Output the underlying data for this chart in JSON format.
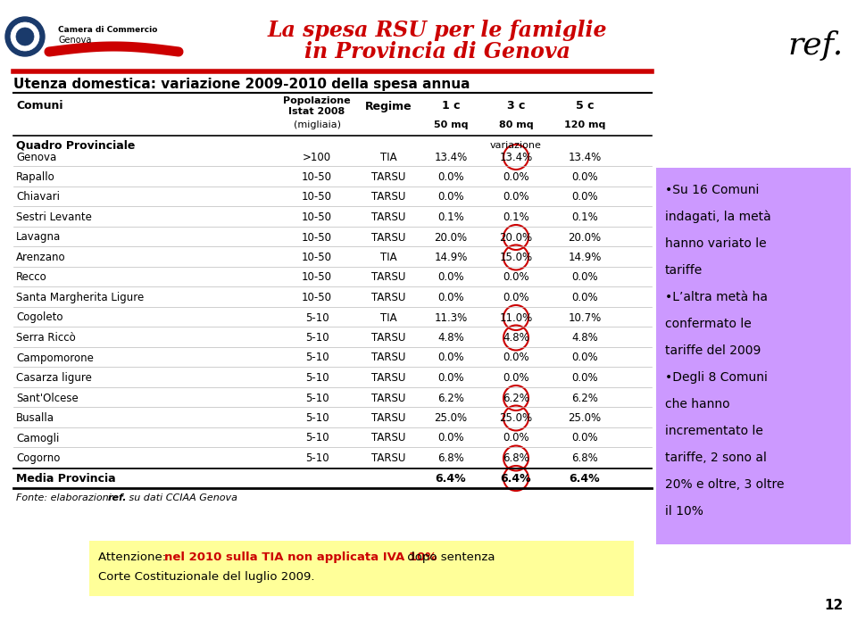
{
  "title_line1": "La spesa RSU per le famiglie",
  "title_line2": "in Provincia di Genova",
  "subtitle": "Utenza domestica: variazione 2009-2010 della spesa annua",
  "rows": [
    [
      "Genova",
      ">100",
      "TIA",
      "13.4%",
      "13.4%",
      "13.4%",
      true
    ],
    [
      "Rapallo",
      "10-50",
      "TARSU",
      "0.0%",
      "0.0%",
      "0.0%",
      false
    ],
    [
      "Chiavari",
      "10-50",
      "TARSU",
      "0.0%",
      "0.0%",
      "0.0%",
      false
    ],
    [
      "Sestri Levante",
      "10-50",
      "TARSU",
      "0.1%",
      "0.1%",
      "0.1%",
      false
    ],
    [
      "Lavagna",
      "10-50",
      "TARSU",
      "20.0%",
      "20.0%",
      "20.0%",
      true
    ],
    [
      "Arenzano",
      "10-50",
      "TIA",
      "14.9%",
      "15.0%",
      "14.9%",
      true
    ],
    [
      "Recco",
      "10-50",
      "TARSU",
      "0.0%",
      "0.0%",
      "0.0%",
      false
    ],
    [
      "Santa Margherita Ligure",
      "10-50",
      "TARSU",
      "0.0%",
      "0.0%",
      "0.0%",
      false
    ],
    [
      "Cogoleto",
      "5-10",
      "TIA",
      "11.3%",
      "11.0%",
      "10.7%",
      true
    ],
    [
      "Serra Riccò",
      "5-10",
      "TARSU",
      "4.8%",
      "4.8%",
      "4.8%",
      true
    ],
    [
      "Campomorone",
      "5-10",
      "TARSU",
      "0.0%",
      "0.0%",
      "0.0%",
      false
    ],
    [
      "Casarza ligure",
      "5-10",
      "TARSU",
      "0.0%",
      "0.0%",
      "0.0%",
      false
    ],
    [
      "Sant'Olcese",
      "5-10",
      "TARSU",
      "6.2%",
      "6.2%",
      "6.2%",
      true
    ],
    [
      "Busalla",
      "5-10",
      "TARSU",
      "25.0%",
      "25.0%",
      "25.0%",
      true
    ],
    [
      "Camogli",
      "5-10",
      "TARSU",
      "0.0%",
      "0.0%",
      "0.0%",
      false
    ],
    [
      "Cogorno",
      "5-10",
      "TARSU",
      "6.8%",
      "6.8%",
      "6.8%",
      true
    ]
  ],
  "footer_row_vals": [
    "6.4%",
    "6.4%",
    "6.4%"
  ],
  "title_color": "#cc0000",
  "circle_color": "#cc0000",
  "bullet_bg_color": "#cc99ff",
  "attention_bg_color": "#ffff99",
  "red_text": "#cc0000"
}
